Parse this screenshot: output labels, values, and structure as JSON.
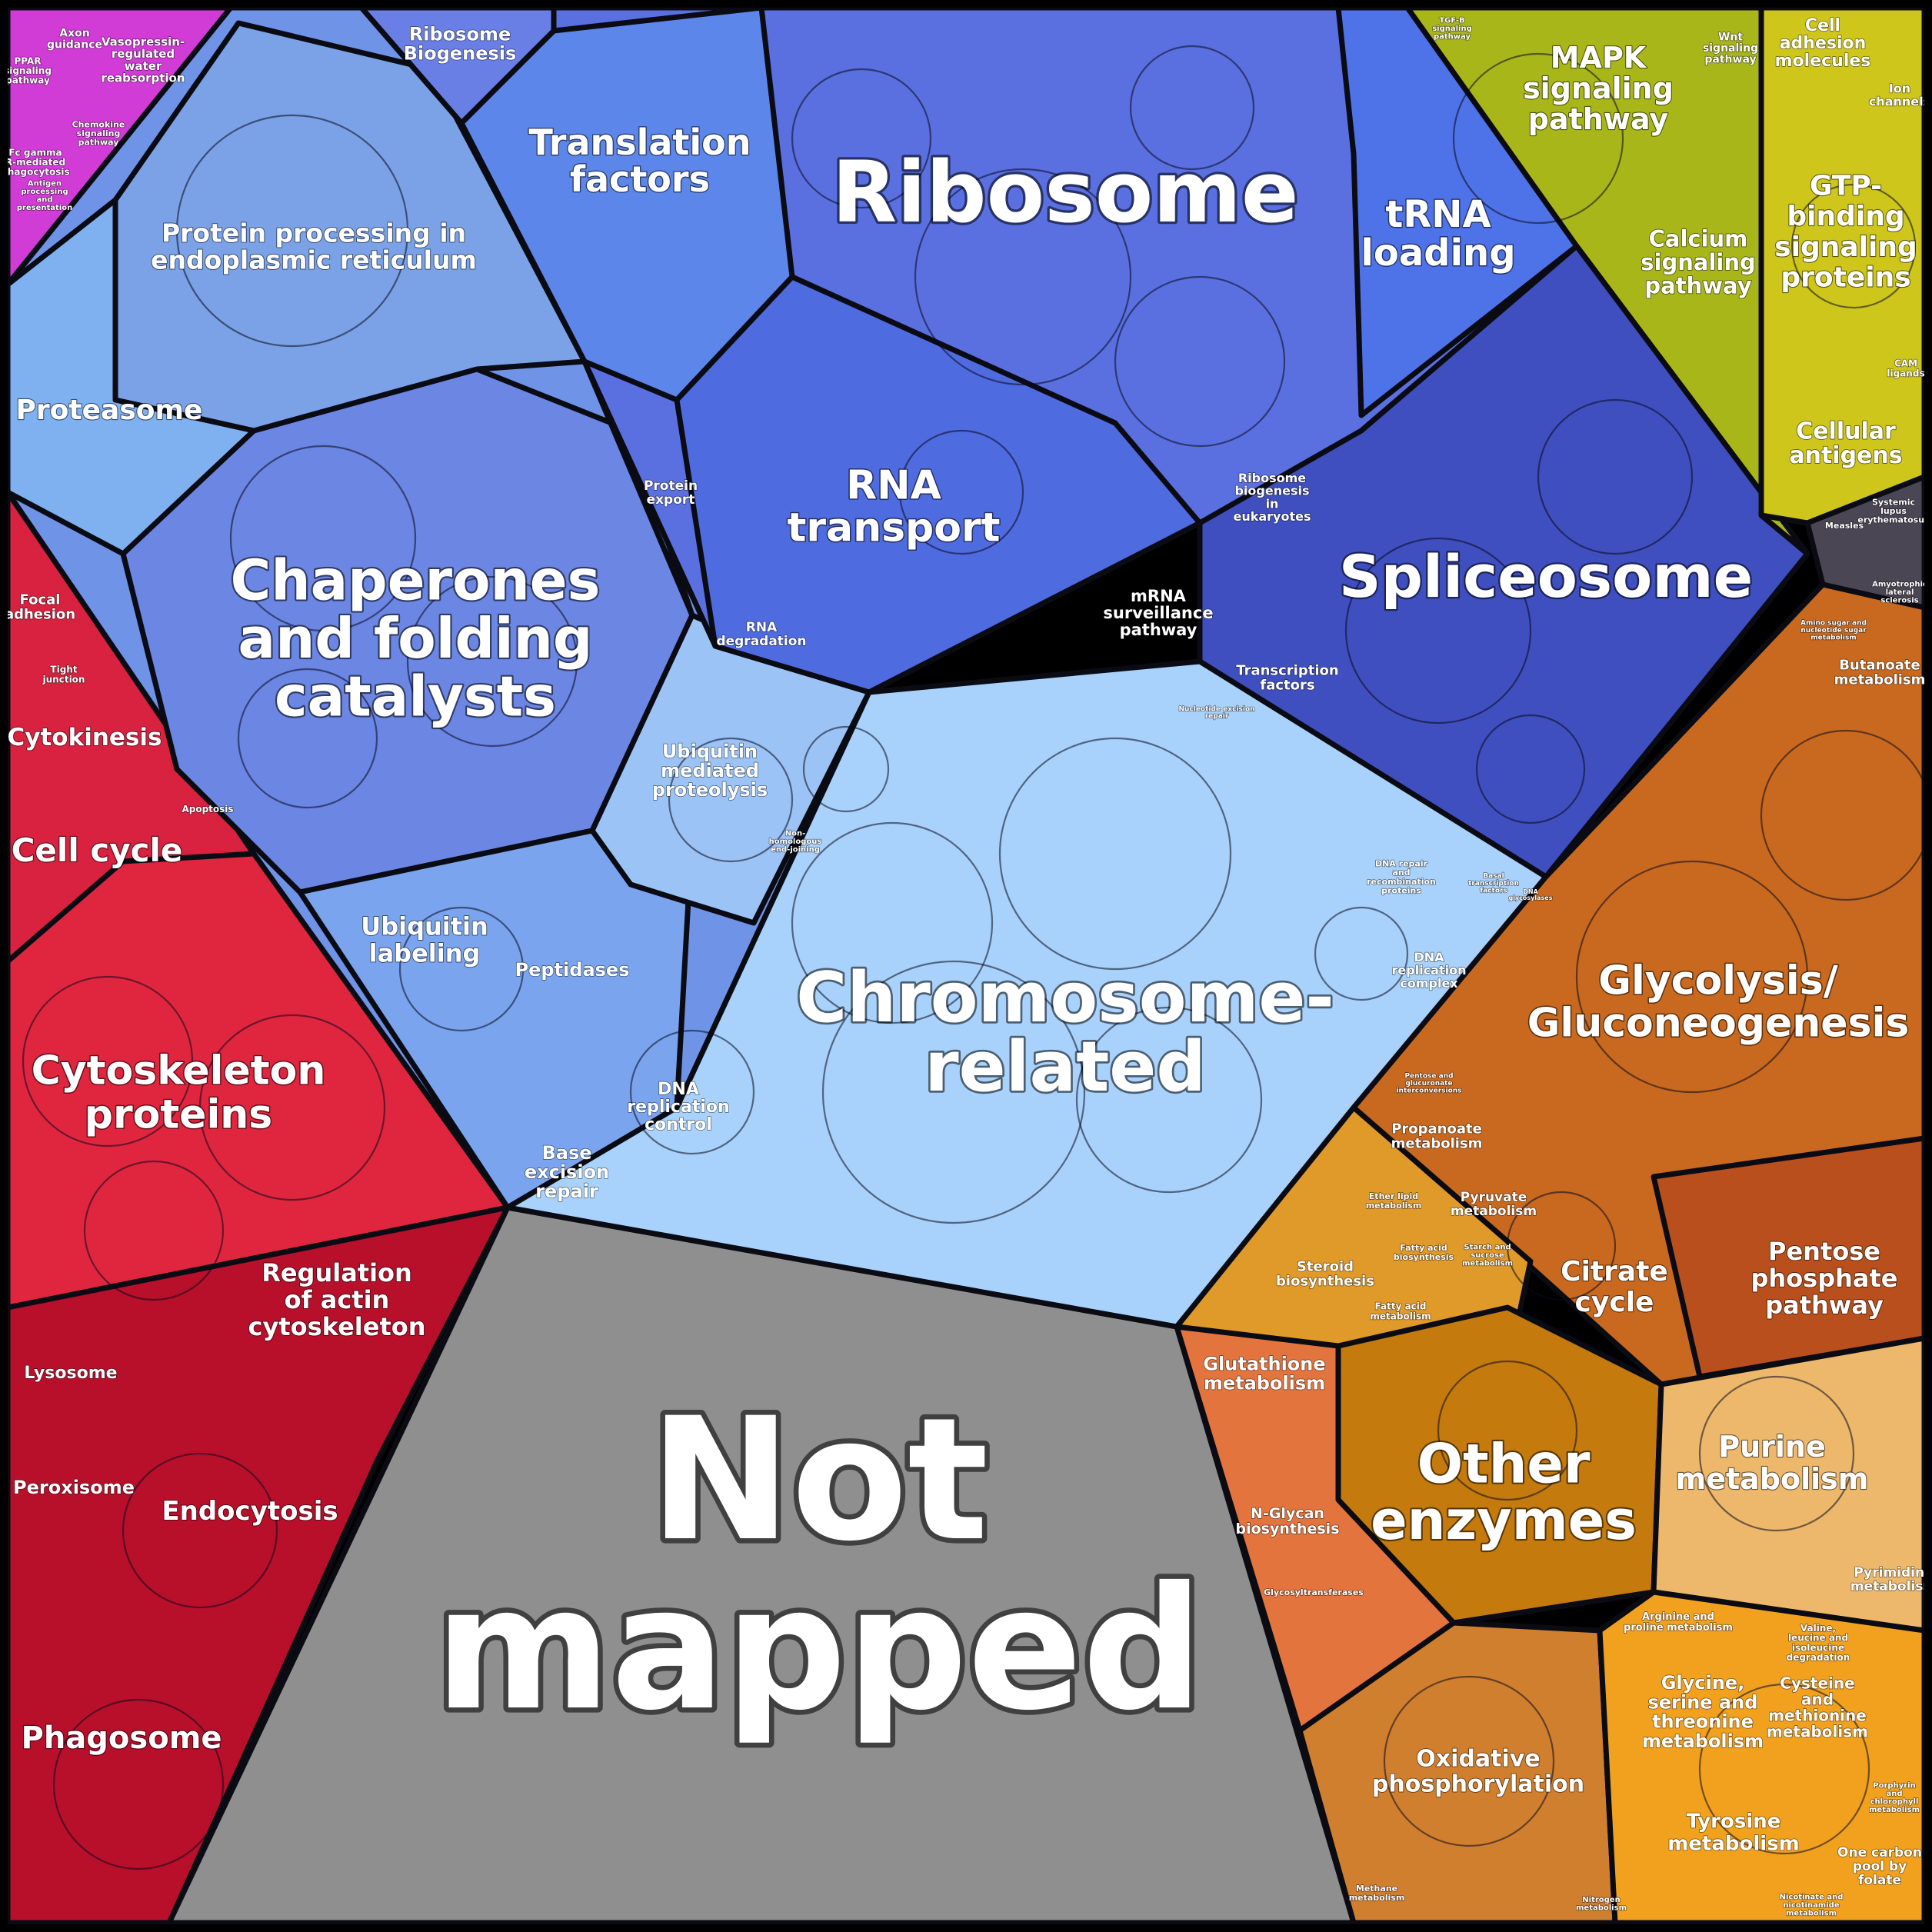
{
  "colors": {
    "background": "#000000",
    "pink": "#d13bd6",
    "red": "#d8223f",
    "crimson": "#b8102a",
    "blue_light": "#7aa6ef",
    "blue_mid": "#5b7ee6",
    "blue_dark": "#3f4fbf",
    "chromosome": "#a8d2fb",
    "yellow_green": "#a9b61a",
    "yellow": "#cfc61c",
    "orange": "#c8691f",
    "orange_light": "#e8a93a",
    "tan": "#edb86b",
    "grey": "#8f8f8f",
    "dark_grey": "#4a4654"
  },
  "labels": {
    "not_mapped": [
      "Not",
      "mapped"
    ],
    "ribosome": [
      "Ribosome"
    ],
    "chromosome": [
      "Chromosome-",
      "related"
    ],
    "spliceosome": [
      "Spliceosome"
    ],
    "chaperones": [
      "Chaperones",
      "and folding",
      "catalysts"
    ],
    "other_enzymes": [
      "Other",
      "enzymes"
    ],
    "cytoskeleton": [
      "Cytoskeleton",
      "proteins"
    ],
    "glycolysis": [
      "Glycolysis/",
      "Gluconeogenesis"
    ],
    "translation": [
      "Translation",
      "factors"
    ],
    "rna_transport": [
      "RNA",
      "transport"
    ],
    "trna": [
      "tRNA",
      "loading"
    ],
    "mapk": [
      "MAPK",
      "signaling",
      "pathway"
    ],
    "gtp": [
      "GTP-",
      "binding",
      "signaling",
      "proteins"
    ],
    "protein_processing": [
      "Protein processing in",
      "endoplasmic reticulum"
    ],
    "proteasome": [
      "Proteasome"
    ],
    "ribosome_biogenesis": [
      "Ribosome",
      "Biogenesis"
    ],
    "cell_cycle": [
      "Cell cycle"
    ],
    "cytokinesis": [
      "Cytokinesis"
    ],
    "phagosome": [
      "Phagosome"
    ],
    "endocytosis": [
      "Endocytosis"
    ],
    "peroxisome": [
      "Peroxisome"
    ],
    "lysosome": [
      "Lysosome"
    ],
    "regulation_actin": [
      "Regulation",
      "of actin",
      "cytoskeleton"
    ],
    "ubiquitin_labeling": [
      "Ubiquitin",
      "labeling"
    ],
    "peptidases": [
      "Peptidases"
    ],
    "base_excision": [
      "Base",
      "excision",
      "repair"
    ],
    "dna_replication_control": [
      "DNA",
      "replication",
      "control"
    ],
    "ubiquitin_proteolysis": [
      "Ubiquitin",
      "mediated",
      "proteolysis"
    ],
    "rna_degradation": [
      "RNA",
      "degradation"
    ],
    "protein_export": [
      "Protein",
      "export"
    ],
    "mrna_surveillance": [
      "mRNA",
      "surveillance",
      "pathway"
    ],
    "ribosome_biogenesis_euk": [
      "Ribosome",
      "biogenesis",
      "in",
      "eukaryotes"
    ],
    "transcription_factors": [
      "Transcription",
      "factors"
    ],
    "dna_replication_complex": [
      "DNA",
      "replication",
      "complex"
    ],
    "calcium": [
      "Calcium",
      "signaling",
      "pathway"
    ],
    "cell_adhesion": [
      "Cell",
      "adhesion",
      "molecules"
    ],
    "cellular_antigens": [
      "Cellular",
      "antigens"
    ],
    "butanoate": [
      "Butanoate",
      "metabolism"
    ],
    "pentose": [
      "Pentose",
      "phosphate",
      "pathway"
    ],
    "citrate": [
      "Citrate",
      "cycle"
    ],
    "propanoate": [
      "Propanoate",
      "metabolism"
    ],
    "pyruvate": [
      "Pyruvate",
      "metabolism"
    ],
    "steroid": [
      "Steroid",
      "biosynthesis"
    ],
    "glutathione": [
      "Glutathione",
      "metabolism"
    ],
    "nglycan": [
      "N-Glycan",
      "biosynthesis"
    ],
    "purine": [
      "Purine",
      "metabolism"
    ],
    "oxidative": [
      "Oxidative",
      "phosphorylation"
    ],
    "glycine": [
      "Glycine,",
      "serine and",
      "threonine",
      "metabolism"
    ],
    "tyrosine": [
      "Tyrosine",
      "metabolism"
    ],
    "cysteine": [
      "Cysteine",
      "and",
      "methionine",
      "metabolism"
    ],
    "one_carbon": [
      "One carbon",
      "pool by",
      "folate"
    ],
    "pyrimidine": [
      "Pyrimidine",
      "metabolism"
    ],
    "focal_adhesion": [
      "Focal",
      "adhesion"
    ],
    "tight_junction": [
      "Tight",
      "junction"
    ],
    "apoptosis": [
      "Apoptosis"
    ],
    "axon": [
      "Axon",
      "guidance"
    ],
    "vasopressin": [
      "Vasopressin-",
      "regulated",
      "water",
      "reabsorption"
    ],
    "ppar": [
      "PPAR",
      "signaling",
      "pathway"
    ],
    "fc_gamma": [
      "Fc gamma",
      "R-mediated",
      "phagocytosis"
    ],
    "chemokine": [
      "Chemokine",
      "signaling",
      "pathway"
    ],
    "wnt": [
      "Wnt",
      "signaling",
      "pathway"
    ],
    "ion_channels": [
      "Ion",
      "channels"
    ],
    "measles": [
      "Measles"
    ],
    "sle": [
      "Systemic",
      "lupus",
      "erythematosus"
    ],
    "als": [
      "Amyotrophic",
      "lateral",
      "sclerosis"
    ],
    "fatty_acid_bio": [
      "Fatty acid",
      "biosynthesis"
    ],
    "fatty_acid_met": [
      "Fatty acid",
      "metabolism"
    ],
    "ether_lipid": [
      "Ether lipid",
      "metabolism"
    ],
    "glycosyltransferases": [
      "Glycosyltransferases"
    ],
    "arginine": [
      "Arginine and",
      "proline metabolism"
    ],
    "valine": [
      "Valine,",
      "leucine and",
      "isoleucine",
      "degradation"
    ],
    "tgfb": [
      "TGF-B",
      "signaling",
      "pathway"
    ],
    "cam_ligands": [
      "CAM",
      "ligands"
    ],
    "starch": [
      "Starch and",
      "sucrose",
      "metabolism"
    ],
    "methane": [
      "Methane",
      "metabolism"
    ],
    "nitrogen": [
      "Nitrogen",
      "metabolism"
    ],
    "nhej": [
      "Non-",
      "homologous",
      "end-joining"
    ],
    "dna_repair": [
      "DNA repair",
      "and",
      "recombination",
      "proteins"
    ],
    "basal_tf": [
      "Basal",
      "transcription",
      "factors"
    ],
    "dna_glycosylases": [
      "DNA",
      "glycosylases"
    ],
    "nucleotide_excision": [
      "Nucleotide excision",
      "repair"
    ],
    "antigen": [
      "Antigen",
      "processing",
      "and",
      "presentation"
    ],
    "porphyrin": [
      "Porphyrin",
      "and",
      "chlorophyll",
      "metabolism"
    ],
    "nicotinate": [
      "Nicotinate and",
      "nicotinamide",
      "metabolism"
    ],
    "amino_sugar": [
      "Amino sugar and",
      "nucleotide sugar",
      "metabolism"
    ],
    "pentose_glucuronate": [
      "Pentose and",
      "glucuronate",
      "interconversions"
    ]
  }
}
